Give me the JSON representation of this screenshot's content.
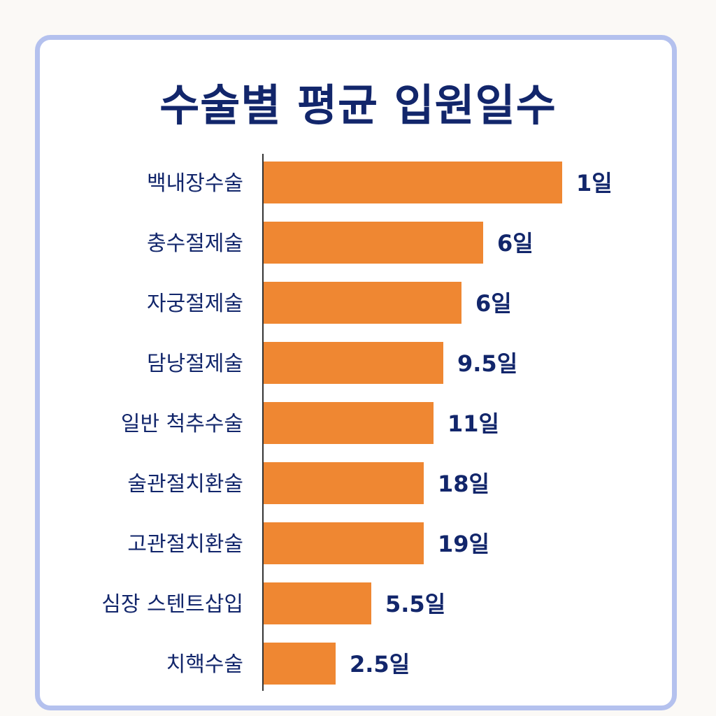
{
  "chart_data": {
    "type": "bar",
    "orientation": "horizontal",
    "title": "수술별 평균 입원일수",
    "categories": [
      "백내장수술",
      "충수절제술",
      "자궁절제술",
      "담낭절제술",
      "일반 척추수술",
      "술관절치환술",
      "고관절치환술",
      "심장 스텐트삽입",
      "치핵수술"
    ],
    "value_labels": [
      "1일",
      "6일",
      "6일",
      "9.5일",
      "11일",
      "18일",
      "19일",
      "5.5일",
      "2.5일"
    ],
    "values": [
      1,
      6,
      6,
      9.5,
      11,
      18,
      19,
      5.5,
      2.5
    ],
    "bar_color": "#ef8732",
    "text_color": "#12266b",
    "border_color": "#b4c1ee",
    "grid": false,
    "legend": "none"
  }
}
